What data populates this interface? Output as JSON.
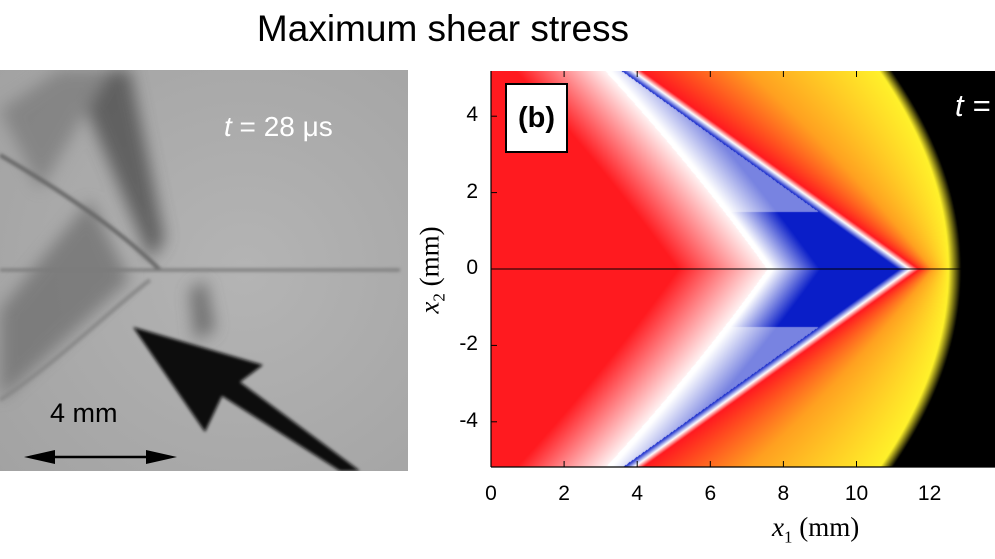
{
  "title": "Maximum shear stress",
  "photo": {
    "time_label_italic": "t",
    "time_label_rest": " = 28 μs",
    "scale_bar_label": "4 mm"
  },
  "colors": {
    "red": "#ff1a1f",
    "white": "#ffffff",
    "blue": "#0a1ec8",
    "yellow": "#fff12a",
    "black": "#000000"
  },
  "chart_data": {
    "type": "heatmap",
    "panel_label": "(b)",
    "time_label_partial": "t =",
    "xlabel_var": "x",
    "xlabel_sub": "1",
    "xlabel_unit": "(mm)",
    "ylabel_var": "x",
    "ylabel_sub": "2",
    "ylabel_unit": "(mm)",
    "xlim": [
      0,
      13.8
    ],
    "ylim": [
      -5.2,
      5.2
    ],
    "xticks": [
      "0",
      "2",
      "4",
      "6",
      "8",
      "10",
      "12"
    ],
    "xtick_values": [
      0,
      2,
      4,
      6,
      8,
      10,
      12
    ],
    "yticks": [
      "4",
      "2",
      "0",
      "-2",
      "-4"
    ],
    "ytick_values": [
      4,
      2,
      0,
      -2,
      -4
    ],
    "colormap": [
      "#ff1a1f",
      "#ffffff",
      "#0a1ec8",
      "#ffa020",
      "#fff12a",
      "#000000"
    ],
    "features": {
      "blue_wedge_apex_x": 11.7,
      "front_x_at_axis": 12.5,
      "center_line_y": 0
    }
  }
}
